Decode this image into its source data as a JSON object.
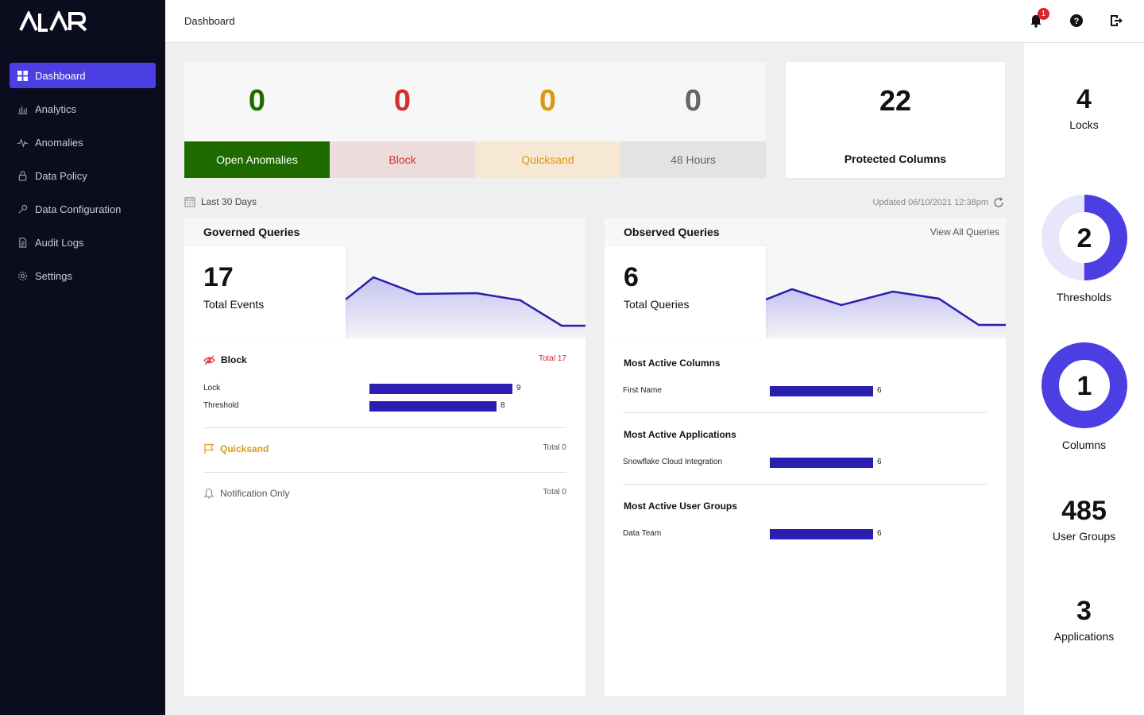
{
  "app": {
    "page_title": "Dashboard",
    "notification_count": "1"
  },
  "sidebar": {
    "items": [
      {
        "label": "Dashboard",
        "icon": "grid-icon"
      },
      {
        "label": "Analytics",
        "icon": "bar-chart-icon"
      },
      {
        "label": "Anomalies",
        "icon": "pulse-icon"
      },
      {
        "label": "Data Policy",
        "icon": "lock-icon"
      },
      {
        "label": "Data Configuration",
        "icon": "wrench-icon"
      },
      {
        "label": "Audit Logs",
        "icon": "document-icon"
      },
      {
        "label": "Settings",
        "icon": "gear-icon"
      }
    ]
  },
  "tiles": [
    {
      "value": "0",
      "label": "Open Anomalies",
      "color": "#1f6b00",
      "label_bg": "#1f6b00",
      "label_color": "#ffffff"
    },
    {
      "value": "0",
      "label": "Block",
      "color": "#d13030",
      "label_bg": "#ecdcdc",
      "label_color": "#d13030"
    },
    {
      "value": "0",
      "label": "Quicksand",
      "color": "#d99a10",
      "label_bg": "#f6e8d4",
      "label_color": "#d99a10"
    },
    {
      "value": "0",
      "label": "48 Hours",
      "color": "#666666",
      "label_bg": "#e3e3e3",
      "label_color": "#666666"
    }
  ],
  "protected_columns": {
    "value": "22",
    "label": "Protected Columns"
  },
  "range_label": "Last 30 Days",
  "updated_label": "Updated 06/10/2021 12:38pm",
  "governed": {
    "title": "Governed Queries",
    "value": "17",
    "label": "Total Events",
    "block": {
      "title": "Block",
      "total": "Total 17",
      "rows": [
        {
          "label": "Lock",
          "value": 9
        },
        {
          "label": "Threshold",
          "value": 8
        }
      ]
    },
    "quicksand": {
      "title": "Quicksand",
      "total": "Total 0"
    },
    "notification": {
      "title": "Notification Only",
      "total": "Total 0"
    }
  },
  "observed": {
    "title": "Observed Queries",
    "link": "View All Queries",
    "value": "6",
    "label": "Total Queries",
    "sections": [
      {
        "title": "Most Active Columns",
        "row_label": "First Name",
        "value": 6
      },
      {
        "title": "Most Active Applications",
        "row_label": "Snowflake Cloud Integration",
        "value": 6
      },
      {
        "title": "Most Active User Groups",
        "row_label": "Data Team",
        "value": 6
      }
    ]
  },
  "right_panel": {
    "locks": {
      "value": "4",
      "label": "Locks"
    },
    "thresholds": {
      "value": "2",
      "label": "Thresholds",
      "fill_fraction": 0.5
    },
    "columns": {
      "value": "1",
      "label": "Columns",
      "fill_fraction": 1.0
    },
    "user_groups": {
      "value": "485",
      "label": "User Groups"
    },
    "applications": {
      "value": "3",
      "label": "Applications"
    }
  },
  "colors": {
    "accent": "#4b3fe4",
    "bar": "#2a1fae",
    "sidebar_bg": "#0b0d1f"
  }
}
